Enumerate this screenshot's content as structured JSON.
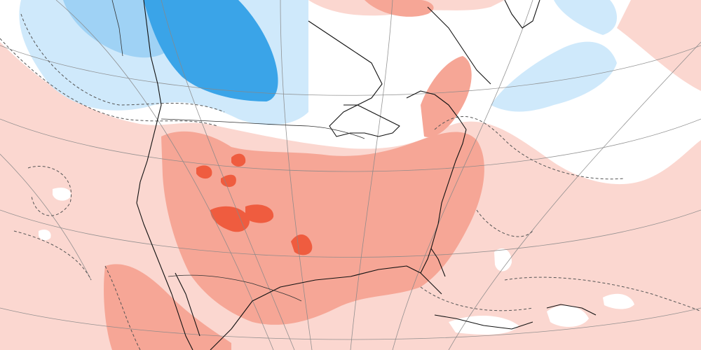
{
  "map": {
    "region": "North America",
    "projection": "polar-stereographic",
    "legend_colors": {
      "warm_light": "#fbd7d0",
      "warm_medium": "#f6a696",
      "warm_strong": "#ef5c3f",
      "neutral": "#ffffff",
      "cool_light": "#cfe9fb",
      "cool_medium": "#9fd2f5",
      "cool_strong": "#3aa4e8"
    },
    "contours": "dashed",
    "coastlines": true,
    "graticule": true
  }
}
